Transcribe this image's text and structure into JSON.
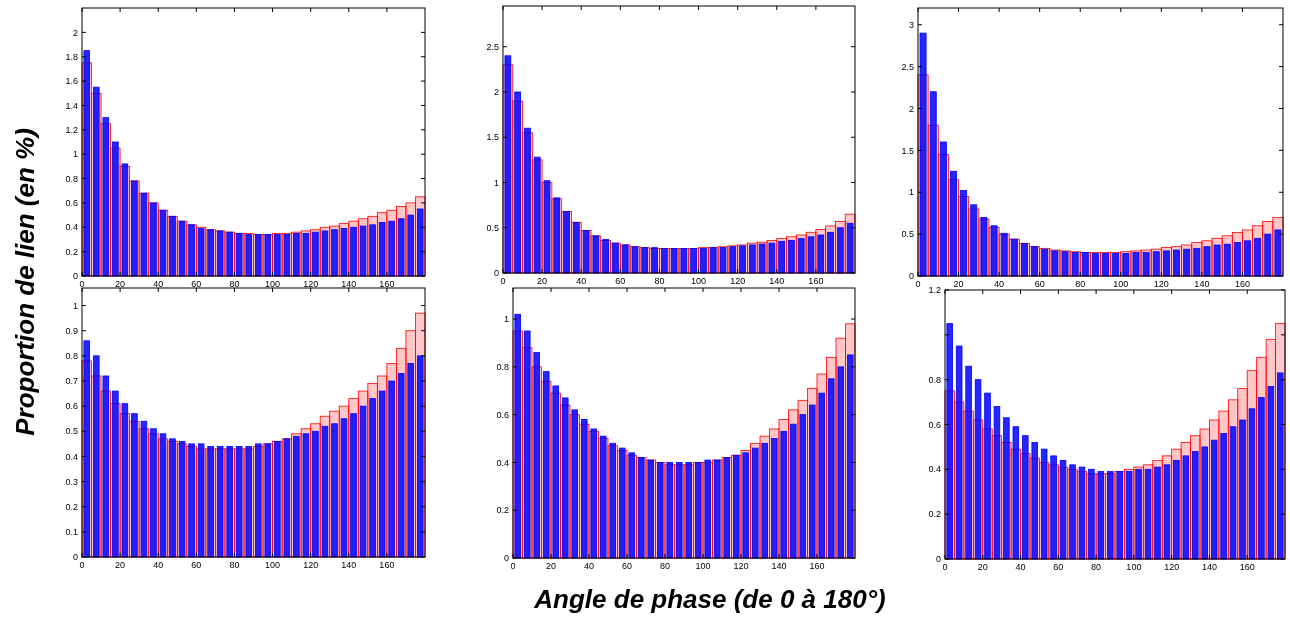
{
  "chart_data": [
    {
      "type": "histogram",
      "ylabel": "Proportion de lien (en %)",
      "bins": [
        0,
        5,
        10,
        15,
        20,
        25,
        30,
        35,
        40,
        45,
        50,
        55,
        60,
        65,
        70,
        75,
        80,
        85,
        90,
        95,
        100,
        105,
        110,
        115,
        120,
        125,
        130,
        135,
        140,
        145,
        150,
        155,
        160,
        165,
        170,
        175,
        180
      ],
      "xlim": [
        0,
        180
      ],
      "xticks": [
        0,
        20,
        40,
        60,
        80,
        100,
        120,
        140,
        160
      ],
      "ylim": [
        0,
        2.2
      ],
      "yticks": [
        0,
        0.2,
        0.4,
        0.6,
        0.8,
        1,
        1.2,
        1.4,
        1.6,
        1.8,
        2
      ],
      "series": [
        {
          "color": "#ff0000",
          "values": [
            1.75,
            1.5,
            1.25,
            1.05,
            0.9,
            0.78,
            0.68,
            0.6,
            0.54,
            0.49,
            0.45,
            0.42,
            0.4,
            0.38,
            0.37,
            0.36,
            0.35,
            0.35,
            0.34,
            0.34,
            0.35,
            0.35,
            0.36,
            0.37,
            0.38,
            0.4,
            0.41,
            0.43,
            0.45,
            0.47,
            0.49,
            0.52,
            0.54,
            0.57,
            0.6,
            0.65
          ]
        },
        {
          "color": "#0000ff",
          "values": [
            1.85,
            1.55,
            1.3,
            1.1,
            0.92,
            0.78,
            0.68,
            0.6,
            0.54,
            0.49,
            0.45,
            0.42,
            0.39,
            0.38,
            0.37,
            0.36,
            0.35,
            0.34,
            0.34,
            0.34,
            0.34,
            0.34,
            0.35,
            0.35,
            0.36,
            0.37,
            0.38,
            0.39,
            0.4,
            0.41,
            0.42,
            0.44,
            0.45,
            0.47,
            0.5,
            0.55
          ]
        }
      ]
    },
    {
      "type": "histogram",
      "bins": [
        0,
        5,
        10,
        15,
        20,
        25,
        30,
        35,
        40,
        45,
        50,
        55,
        60,
        65,
        70,
        75,
        80,
        85,
        90,
        95,
        100,
        105,
        110,
        115,
        120,
        125,
        130,
        135,
        140,
        145,
        150,
        155,
        160,
        165,
        170,
        175,
        180
      ],
      "xlim": [
        0,
        180
      ],
      "xticks": [
        0,
        20,
        40,
        60,
        80,
        100,
        120,
        140,
        160
      ],
      "ylim": [
        0,
        2.95
      ],
      "yticks": [
        0,
        0.5,
        1,
        1.5,
        2,
        2.5
      ],
      "series": [
        {
          "color": "#ff0000",
          "values": [
            2.3,
            1.9,
            1.55,
            1.25,
            1.0,
            0.82,
            0.68,
            0.56,
            0.47,
            0.41,
            0.36,
            0.33,
            0.31,
            0.29,
            0.28,
            0.27,
            0.27,
            0.27,
            0.27,
            0.27,
            0.28,
            0.28,
            0.29,
            0.3,
            0.31,
            0.33,
            0.34,
            0.36,
            0.38,
            0.4,
            0.42,
            0.45,
            0.48,
            0.52,
            0.57,
            0.65
          ]
        },
        {
          "color": "#0000ff",
          "values": [
            2.4,
            2.0,
            1.6,
            1.28,
            1.02,
            0.83,
            0.68,
            0.56,
            0.47,
            0.41,
            0.37,
            0.33,
            0.31,
            0.29,
            0.28,
            0.28,
            0.27,
            0.27,
            0.27,
            0.27,
            0.27,
            0.28,
            0.28,
            0.29,
            0.3,
            0.31,
            0.32,
            0.33,
            0.35,
            0.36,
            0.38,
            0.4,
            0.42,
            0.45,
            0.5,
            0.55
          ]
        }
      ]
    },
    {
      "type": "histogram",
      "bins": [
        0,
        5,
        10,
        15,
        20,
        25,
        30,
        35,
        40,
        45,
        50,
        55,
        60,
        65,
        70,
        75,
        80,
        85,
        90,
        95,
        100,
        105,
        110,
        115,
        120,
        125,
        130,
        135,
        140,
        145,
        150,
        155,
        160,
        165,
        170,
        175,
        180
      ],
      "xlim": [
        0,
        180
      ],
      "xticks": [
        0,
        20,
        40,
        60,
        80,
        100,
        120,
        140,
        160
      ],
      "ylim": [
        0,
        3.2
      ],
      "yticks": [
        0,
        0.5,
        1,
        1.5,
        2,
        2.5,
        3
      ],
      "series": [
        {
          "color": "#ff0000",
          "values": [
            2.4,
            1.8,
            1.45,
            1.15,
            0.95,
            0.8,
            0.68,
            0.58,
            0.5,
            0.44,
            0.39,
            0.35,
            0.33,
            0.31,
            0.3,
            0.29,
            0.28,
            0.28,
            0.28,
            0.28,
            0.29,
            0.3,
            0.31,
            0.32,
            0.34,
            0.35,
            0.37,
            0.4,
            0.42,
            0.45,
            0.48,
            0.52,
            0.55,
            0.6,
            0.65,
            0.7
          ]
        },
        {
          "color": "#0000ff",
          "values": [
            2.9,
            2.2,
            1.6,
            1.25,
            1.02,
            0.85,
            0.7,
            0.6,
            0.51,
            0.44,
            0.39,
            0.35,
            0.32,
            0.3,
            0.29,
            0.28,
            0.28,
            0.27,
            0.27,
            0.27,
            0.27,
            0.28,
            0.28,
            0.29,
            0.3,
            0.31,
            0.32,
            0.33,
            0.35,
            0.37,
            0.38,
            0.4,
            0.42,
            0.45,
            0.5,
            0.55
          ]
        }
      ]
    },
    {
      "type": "histogram",
      "bins": [
        0,
        5,
        10,
        15,
        20,
        25,
        30,
        35,
        40,
        45,
        50,
        55,
        60,
        65,
        70,
        75,
        80,
        85,
        90,
        95,
        100,
        105,
        110,
        115,
        120,
        125,
        130,
        135,
        140,
        145,
        150,
        155,
        160,
        165,
        170,
        175,
        180
      ],
      "xlim": [
        0,
        180
      ],
      "xticks": [
        0,
        20,
        40,
        60,
        80,
        100,
        120,
        140,
        160
      ],
      "ylim": [
        0,
        1.07
      ],
      "yticks": [
        0,
        0.1,
        0.2,
        0.3,
        0.4,
        0.5,
        0.6,
        0.7,
        0.8,
        0.9,
        1
      ],
      "series": [
        {
          "color": "#ff0000",
          "values": [
            0.78,
            0.72,
            0.66,
            0.61,
            0.57,
            0.54,
            0.51,
            0.49,
            0.47,
            0.46,
            0.45,
            0.44,
            0.43,
            0.43,
            0.43,
            0.43,
            0.43,
            0.43,
            0.44,
            0.45,
            0.46,
            0.47,
            0.49,
            0.51,
            0.53,
            0.56,
            0.58,
            0.6,
            0.63,
            0.66,
            0.69,
            0.72,
            0.77,
            0.83,
            0.9,
            0.97
          ]
        },
        {
          "color": "#0000ff",
          "values": [
            0.86,
            0.8,
            0.72,
            0.66,
            0.61,
            0.57,
            0.54,
            0.51,
            0.49,
            0.47,
            0.46,
            0.45,
            0.45,
            0.44,
            0.44,
            0.44,
            0.44,
            0.44,
            0.45,
            0.45,
            0.46,
            0.47,
            0.48,
            0.49,
            0.5,
            0.52,
            0.53,
            0.55,
            0.57,
            0.6,
            0.63,
            0.66,
            0.7,
            0.73,
            0.77,
            0.8
          ]
        }
      ]
    },
    {
      "type": "histogram",
      "xlabel": "Angle de phase (de 0 à 180°)",
      "bins": [
        0,
        5,
        10,
        15,
        20,
        25,
        30,
        35,
        40,
        45,
        50,
        55,
        60,
        65,
        70,
        75,
        80,
        85,
        90,
        95,
        100,
        105,
        110,
        115,
        120,
        125,
        130,
        135,
        140,
        145,
        150,
        155,
        160,
        165,
        170,
        175,
        180
      ],
      "xlim": [
        0,
        180
      ],
      "xticks": [
        0,
        20,
        40,
        60,
        80,
        100,
        120,
        140,
        160
      ],
      "ylim": [
        0,
        1.13
      ],
      "yticks": [
        0,
        0.2,
        0.4,
        0.6,
        0.8,
        1
      ],
      "series": [
        {
          "color": "#ff0000",
          "values": [
            0.95,
            0.88,
            0.8,
            0.74,
            0.69,
            0.64,
            0.6,
            0.56,
            0.53,
            0.5,
            0.47,
            0.45,
            0.43,
            0.42,
            0.41,
            0.4,
            0.39,
            0.39,
            0.39,
            0.4,
            0.4,
            0.41,
            0.42,
            0.43,
            0.45,
            0.48,
            0.51,
            0.54,
            0.58,
            0.62,
            0.66,
            0.71,
            0.77,
            0.84,
            0.92,
            0.98
          ]
        },
        {
          "color": "#0000ff",
          "values": [
            1.02,
            0.95,
            0.86,
            0.78,
            0.72,
            0.67,
            0.62,
            0.58,
            0.54,
            0.51,
            0.48,
            0.46,
            0.44,
            0.42,
            0.41,
            0.4,
            0.4,
            0.4,
            0.4,
            0.4,
            0.41,
            0.41,
            0.42,
            0.43,
            0.44,
            0.46,
            0.48,
            0.5,
            0.53,
            0.56,
            0.6,
            0.64,
            0.69,
            0.75,
            0.8,
            0.85
          ]
        }
      ]
    },
    {
      "type": "histogram",
      "bins": [
        0,
        5,
        10,
        15,
        20,
        25,
        30,
        35,
        40,
        45,
        50,
        55,
        60,
        65,
        70,
        75,
        80,
        85,
        90,
        95,
        100,
        105,
        110,
        115,
        120,
        125,
        130,
        135,
        140,
        145,
        150,
        155,
        160,
        165,
        170,
        175,
        180
      ],
      "xlim": [
        0,
        180
      ],
      "xticks": [
        0,
        20,
        40,
        60,
        80,
        100,
        120,
        140,
        160
      ],
      "ylim": [
        0,
        1.2
      ],
      "yticks": [
        0,
        0.2,
        0.4,
        0.6,
        0.8,
        {
          "value": 1,
          "label": null
        },
        1.2
      ],
      "series": [
        {
          "color": "#ff0000",
          "values": [
            0.75,
            0.7,
            0.66,
            0.62,
            0.58,
            0.55,
            0.52,
            0.49,
            0.47,
            0.45,
            0.43,
            0.42,
            0.41,
            0.4,
            0.39,
            0.38,
            0.38,
            0.38,
            0.39,
            0.4,
            0.41,
            0.42,
            0.44,
            0.46,
            0.49,
            0.52,
            0.55,
            0.58,
            0.62,
            0.66,
            0.71,
            0.76,
            0.84,
            0.9,
            0.98,
            1.05
          ]
        },
        {
          "color": "#0000ff",
          "values": [
            1.05,
            0.95,
            0.86,
            0.8,
            0.74,
            0.68,
            0.63,
            0.59,
            0.55,
            0.52,
            0.49,
            0.46,
            0.44,
            0.42,
            0.41,
            0.4,
            0.39,
            0.39,
            0.39,
            0.39,
            0.4,
            0.4,
            0.41,
            0.42,
            0.44,
            0.46,
            0.48,
            0.5,
            0.53,
            0.56,
            0.59,
            0.62,
            0.67,
            0.72,
            0.77,
            0.83
          ]
        }
      ]
    }
  ]
}
